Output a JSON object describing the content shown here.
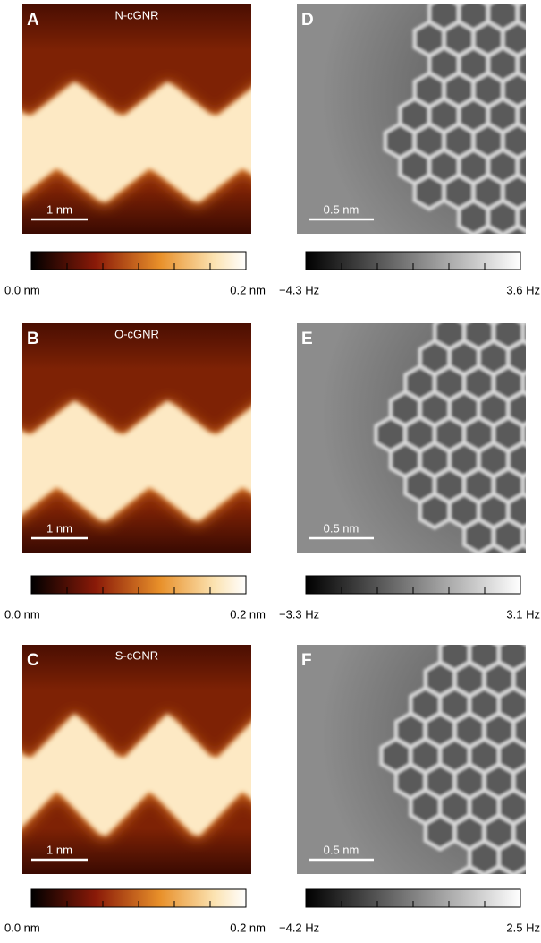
{
  "panels": [
    {
      "letter": "A",
      "title": "N-cGNR",
      "scale_bar": "1 nm",
      "colorbar": {
        "min": "0.0 nm",
        "max": "0.2 nm"
      }
    },
    {
      "letter": "B",
      "title": "O-cGNR",
      "scale_bar": "1 nm",
      "colorbar": {
        "min": "0.0 nm",
        "max": "0.2 nm"
      }
    },
    {
      "letter": "C",
      "title": "S-cGNR",
      "scale_bar": "1 nm",
      "colorbar": {
        "min": "0.0 nm",
        "max": "0.2 nm"
      }
    },
    {
      "letter": "D",
      "scale_bar": "0.5 nm",
      "colorbar": {
        "min": "−4.3 Hz",
        "max": "3.6 Hz"
      }
    },
    {
      "letter": "E",
      "scale_bar": "0.5 nm",
      "colorbar": {
        "min": "−3.3 Hz",
        "max": "3.1 Hz"
      }
    },
    {
      "letter": "F",
      "scale_bar": "0.5 nm",
      "colorbar": {
        "min": "−4.2 Hz",
        "max": "2.5 Hz"
      }
    }
  ]
}
